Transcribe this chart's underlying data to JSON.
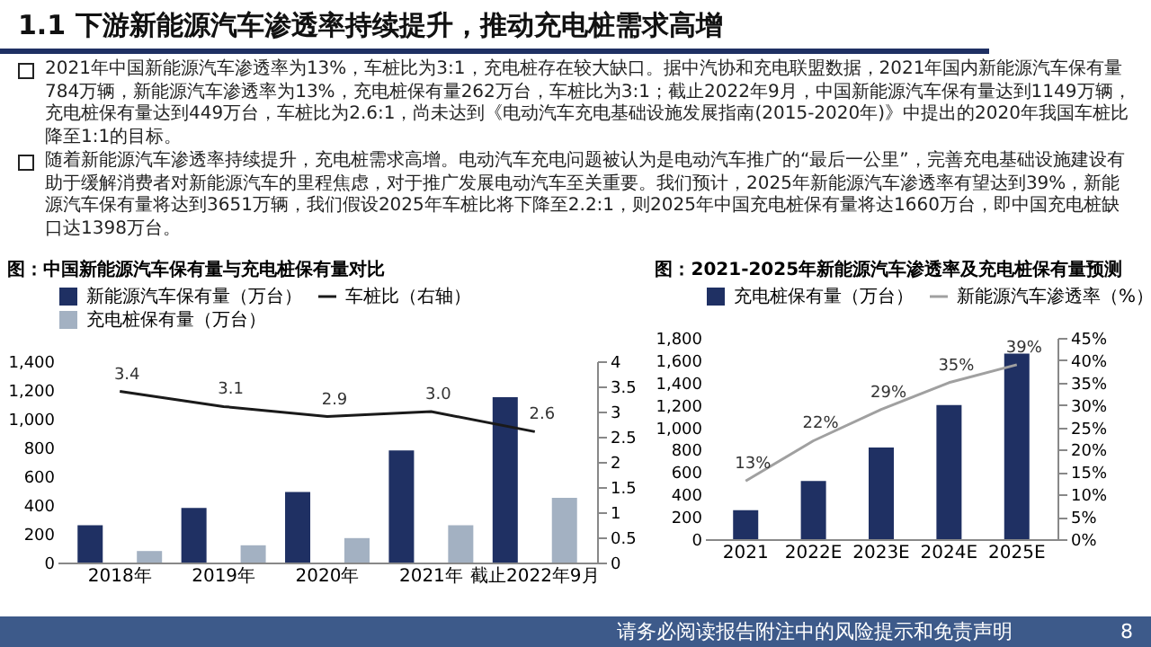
{
  "chart_data": [
    {
      "type": "other",
      "title": "1.1 下游新能源汽车渗透率持续提升，推动充电桩需求高增",
      "annotations": [
        "2021年中国新能源汽车渗透率为13%，车桩比为3:1，充电桩存在较大缺口。据中汽协和充电联盟数据，2021年国内新能源汽车保有量784万辆，新能源汽车渗透率为13%，充电桩保有量262万台，车桩比为3:1；截止2022年9月，中国新能源汽车保有量达到1149万辆，充电桩保有量达到449万台，车桩比为2.6:1，尚未达到《电动汽车充电基础设施发展指南(2015-2020年)》中提出的2020年我国车桩比降至1:1的目标。",
        "随着新能源汽车渗透率持续提升，充电桩需求高增。电动汽车充电问题被认为是电动汽车推广的“最后一公里”，完善充电基础设施建设有助于缓解消费者对新能源汽车的里程焦虑，对于推广发展电动汽车至关重要。我们预计，2025年新能源汽车渗透率有望达到39%，新能源汽车保有量将达到3651万辆，我们假设2025年车桩比将下降至2.2:1，则2025年中国充电桩保有量将达1660万台，即中国充电桩缺口达1398万台。",
        "请务必阅读报告附注中的风险提示和免责声明",
        "8"
      ]
    },
    {
      "type": "bar",
      "title": "图：中国新能源汽车保有量与充电桩保有量对比",
      "categories": [
        "2018年",
        "2019年",
        "2020年",
        "2021年",
        "截止2022年9月"
      ],
      "series": [
        {
          "name": "新能源汽车保有量（万台）",
          "color": "#1f3063",
          "values": [
            260,
            380,
            490,
            780,
            1150
          ]
        },
        {
          "name": "充电桩保有量（万台）",
          "color": "#a3b1c2",
          "values": [
            80,
            120,
            170,
            260,
            450
          ]
        },
        {
          "name": "车桩比（右轴）",
          "type": "line",
          "axis": "y2",
          "color": "#1a1a1a",
          "values": [
            3.4,
            3.1,
            2.9,
            3.0,
            2.6
          ],
          "value_labels": [
            "3.4",
            "3.1",
            "2.9",
            "3.0",
            "2.6"
          ]
        }
      ],
      "ylim": [
        0,
        1400
      ],
      "yticks": [
        0,
        200,
        400,
        600,
        800,
        {
          "value": 1000,
          "label": "1,000"
        },
        {
          "value": 1200,
          "label": "1,200"
        },
        {
          "value": 1400,
          "label": "1,400"
        }
      ],
      "y2lim": [
        0,
        4
      ],
      "y2ticks": [
        0,
        0.5,
        1,
        1.5,
        2,
        2.5,
        3,
        3.5,
        4
      ],
      "legend": "top",
      "grid": false
    },
    {
      "type": "bar",
      "title": "图：2021-2025年新能源汽车渗透率及充电桩保有量预测",
      "categories": [
        "2021",
        "2022E",
        "2023E",
        "2024E",
        "2025E"
      ],
      "series": [
        {
          "name": "充电桩保有量（万台）",
          "color": "#1f3063",
          "values": [
            260,
            520,
            820,
            1200,
            1660
          ]
        },
        {
          "name": "新能源汽车渗透率（%）",
          "type": "line",
          "axis": "y2",
          "color": "#a0a0a0",
          "values": [
            13,
            22,
            29,
            35,
            39
          ],
          "value_labels": [
            "13%",
            "22%",
            "29%",
            "35%",
            "39%"
          ]
        }
      ],
      "ylim": [
        0,
        1800
      ],
      "yticks": [
        0,
        200,
        400,
        600,
        800,
        {
          "value": 1000,
          "label": "1,000"
        },
        {
          "value": 1200,
          "label": "1,200"
        },
        {
          "value": 1400,
          "label": "1,400"
        },
        {
          "value": 1600,
          "label": "1,600"
        },
        {
          "value": 1800,
          "label": "1,800"
        }
      ],
      "y2lim": [
        0,
        45
      ],
      "y2ticks": [
        {
          "value": 0,
          "label": "0%"
        },
        {
          "value": 5,
          "label": "5%"
        },
        {
          "value": 10,
          "label": "10%"
        },
        {
          "value": 15,
          "label": "15%"
        },
        {
          "value": 20,
          "label": "20%"
        },
        {
          "value": 25,
          "label": "25%"
        },
        {
          "value": 30,
          "label": "30%"
        },
        {
          "value": 35,
          "label": "35%"
        },
        {
          "value": 40,
          "label": "40%"
        },
        {
          "value": 45,
          "label": "45%"
        }
      ],
      "legend": "top",
      "grid": false
    }
  ]
}
